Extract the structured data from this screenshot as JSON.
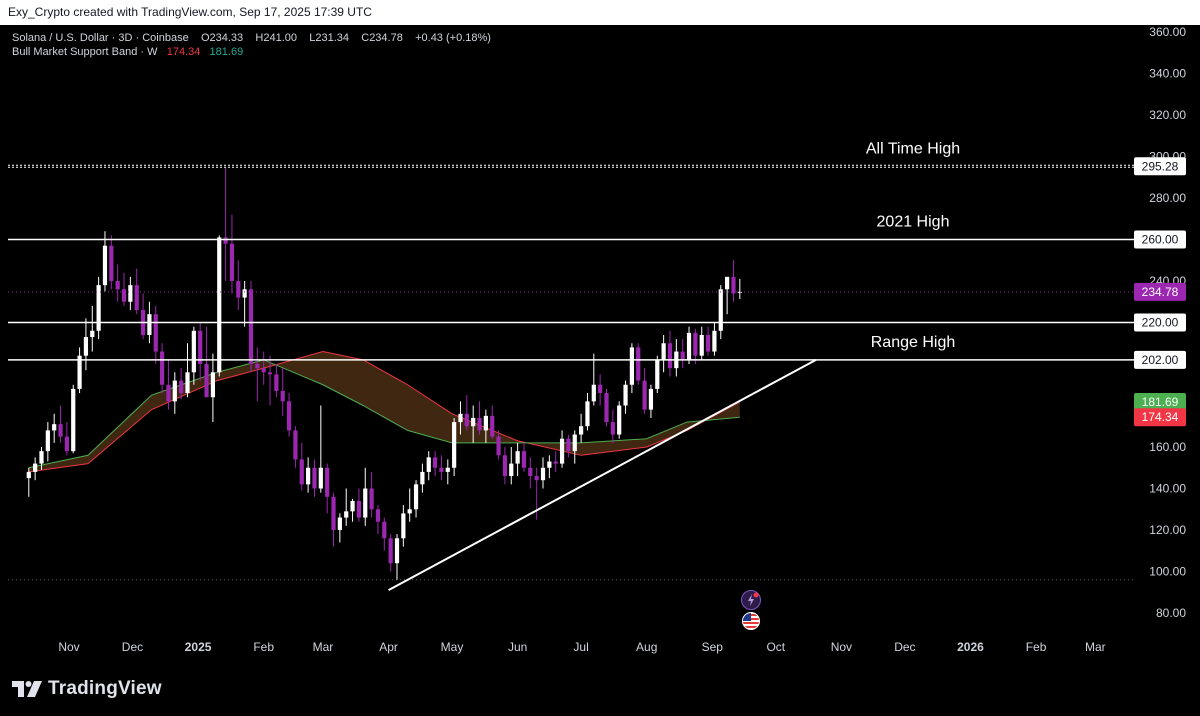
{
  "header": {
    "attribution": "Exy_Crypto created with TradingView.com, Sep 17, 2025 17:39 UTC"
  },
  "legend": {
    "symbol_line": "Solana / U.S. Dollar · 3D · Coinbase",
    "ohlc": {
      "o": "O234.33",
      "h": "H241.00",
      "l": "L231.34",
      "c": "C234.78",
      "chg": "+0.43 (+0.18%)"
    },
    "indicator_name": "Bull Market Support Band · W",
    "indicator_v1": "174.34",
    "indicator_v2": "181.69"
  },
  "branding": {
    "logo_text": "TradingView"
  },
  "colors": {
    "background": "#000000",
    "candle_up": "#ffffff",
    "candle_down": "#9c27b0",
    "band_red": "#f23645",
    "band_green": "#4caf50",
    "band_fill": "#4a2e14",
    "level_line": "#ffffff",
    "last_price_tag": "#9c27b0"
  },
  "chart_data": {
    "type": "candlestick",
    "title": "Solana / U.S. Dollar · 3D · Coinbase",
    "ylim": [
      75,
      362
    ],
    "y_ticks": [
      80,
      100,
      120,
      140,
      160,
      180,
      200,
      220,
      240,
      260,
      280,
      300,
      320,
      340,
      360
    ],
    "y_tick_labels": [
      "80.00",
      "100.00",
      "120.00",
      "140.00",
      "160.00",
      "180.00",
      "200.00",
      "220.00",
      "240.00",
      "260.00",
      "280.00",
      "300.00",
      "320.00",
      "340.00",
      "360.00"
    ],
    "x_ticks": [
      {
        "label": "Nov",
        "date": "2024-11-01",
        "bold": false
      },
      {
        "label": "Dec",
        "date": "2024-12-01",
        "bold": false
      },
      {
        "label": "2025",
        "date": "2025-01-01",
        "bold": true
      },
      {
        "label": "Feb",
        "date": "2025-02-01",
        "bold": false
      },
      {
        "label": "Mar",
        "date": "2025-03-01",
        "bold": false
      },
      {
        "label": "Apr",
        "date": "2025-04-01",
        "bold": false
      },
      {
        "label": "May",
        "date": "2025-05-01",
        "bold": false
      },
      {
        "label": "Jun",
        "date": "2025-06-01",
        "bold": false
      },
      {
        "label": "Jul",
        "date": "2025-07-01",
        "bold": false
      },
      {
        "label": "Aug",
        "date": "2025-08-01",
        "bold": false
      },
      {
        "label": "Sep",
        "date": "2025-09-01",
        "bold": false
      },
      {
        "label": "Oct",
        "date": "2025-10-01",
        "bold": false
      },
      {
        "label": "Nov",
        "date": "2025-11-01",
        "bold": false
      },
      {
        "label": "Dec",
        "date": "2025-12-01",
        "bold": false
      },
      {
        "label": "2026",
        "date": "2026-01-01",
        "bold": true
      },
      {
        "label": "Feb",
        "date": "2026-02-01",
        "bold": false
      },
      {
        "label": "Mar",
        "date": "2026-03-01",
        "bold": false
      }
    ],
    "levels": [
      {
        "name": "All Time High",
        "value": 295.28,
        "label": "295.28",
        "style": "dotted",
        "text": "All Time High"
      },
      {
        "name": "2021 High",
        "value": 260,
        "label": "260.00",
        "style": "solid",
        "text": "2021 High"
      },
      {
        "name": "Range High top",
        "value": 220,
        "label": "220.00",
        "style": "solid",
        "text": ""
      },
      {
        "name": "Range High",
        "value": 202,
        "label": "202.00",
        "style": "solid",
        "text": "Range High"
      }
    ],
    "last_price": {
      "value": 234.78,
      "label": "234.78"
    },
    "band_labels": [
      {
        "value": 181.69,
        "label": "181.69",
        "color": "#4caf50"
      },
      {
        "value": 174.34,
        "label": "174.34",
        "color": "#f23645"
      }
    ],
    "trendline": {
      "start": {
        "date": "2025-04-01",
        "value": 91
      },
      "end": {
        "date": "2025-10-20",
        "value": 202
      }
    },
    "bottom_dotted_level": 96,
    "candles": [
      {
        "date": "2024-10-13",
        "o": 145,
        "h": 150,
        "l": 136,
        "c": 148
      },
      {
        "date": "2024-10-16",
        "o": 148,
        "h": 155,
        "l": 144,
        "c": 152
      },
      {
        "date": "2024-10-19",
        "o": 152,
        "h": 160,
        "l": 149,
        "c": 158
      },
      {
        "date": "2024-10-22",
        "o": 158,
        "h": 172,
        "l": 153,
        "c": 168
      },
      {
        "date": "2024-10-25",
        "o": 168,
        "h": 176,
        "l": 162,
        "c": 171
      },
      {
        "date": "2024-10-28",
        "o": 171,
        "h": 180,
        "l": 162,
        "c": 165
      },
      {
        "date": "2024-10-31",
        "o": 165,
        "h": 172,
        "l": 156,
        "c": 158
      },
      {
        "date": "2024-11-03",
        "o": 158,
        "h": 190,
        "l": 157,
        "c": 188
      },
      {
        "date": "2024-11-06",
        "o": 188,
        "h": 208,
        "l": 186,
        "c": 204
      },
      {
        "date": "2024-11-09",
        "o": 204,
        "h": 222,
        "l": 197,
        "c": 213
      },
      {
        "date": "2024-11-12",
        "o": 213,
        "h": 228,
        "l": 206,
        "c": 216
      },
      {
        "date": "2024-11-15",
        "o": 216,
        "h": 242,
        "l": 212,
        "c": 238
      },
      {
        "date": "2024-11-18",
        "o": 238,
        "h": 264,
        "l": 235,
        "c": 257
      },
      {
        "date": "2024-11-21",
        "o": 257,
        "h": 262,
        "l": 236,
        "c": 240
      },
      {
        "date": "2024-11-24",
        "o": 240,
        "h": 248,
        "l": 230,
        "c": 236
      },
      {
        "date": "2024-11-27",
        "o": 236,
        "h": 244,
        "l": 228,
        "c": 230
      },
      {
        "date": "2024-11-30",
        "o": 230,
        "h": 242,
        "l": 226,
        "c": 238
      },
      {
        "date": "2024-12-03",
        "o": 238,
        "h": 246,
        "l": 224,
        "c": 226
      },
      {
        "date": "2024-12-06",
        "o": 226,
        "h": 234,
        "l": 212,
        "c": 214
      },
      {
        "date": "2024-12-09",
        "o": 214,
        "h": 230,
        "l": 210,
        "c": 224
      },
      {
        "date": "2024-12-12",
        "o": 224,
        "h": 228,
        "l": 200,
        "c": 206
      },
      {
        "date": "2024-12-15",
        "o": 206,
        "h": 210,
        "l": 186,
        "c": 190
      },
      {
        "date": "2024-12-18",
        "o": 190,
        "h": 202,
        "l": 178,
        "c": 182
      },
      {
        "date": "2024-12-21",
        "o": 182,
        "h": 196,
        "l": 176,
        "c": 192
      },
      {
        "date": "2024-12-24",
        "o": 192,
        "h": 198,
        "l": 183,
        "c": 186
      },
      {
        "date": "2024-12-27",
        "o": 186,
        "h": 210,
        "l": 184,
        "c": 196
      },
      {
        "date": "2024-12-30",
        "o": 196,
        "h": 218,
        "l": 190,
        "c": 216
      },
      {
        "date": "2025-01-02",
        "o": 216,
        "h": 220,
        "l": 192,
        "c": 200
      },
      {
        "date": "2025-01-05",
        "o": 200,
        "h": 218,
        "l": 184,
        "c": 184
      },
      {
        "date": "2025-01-08",
        "o": 184,
        "h": 205,
        "l": 172,
        "c": 196
      },
      {
        "date": "2025-01-11",
        "o": 196,
        "h": 262,
        "l": 194,
        "c": 261
      },
      {
        "date": "2025-01-14",
        "o": 261,
        "h": 295,
        "l": 240,
        "c": 258
      },
      {
        "date": "2025-01-17",
        "o": 258,
        "h": 272,
        "l": 234,
        "c": 240
      },
      {
        "date": "2025-01-20",
        "o": 240,
        "h": 250,
        "l": 226,
        "c": 232
      },
      {
        "date": "2025-01-23",
        "o": 232,
        "h": 240,
        "l": 218,
        "c": 236
      },
      {
        "date": "2025-01-26",
        "o": 236,
        "h": 240,
        "l": 196,
        "c": 200
      },
      {
        "date": "2025-01-29",
        "o": 200,
        "h": 208,
        "l": 182,
        "c": 198
      },
      {
        "date": "2025-02-01",
        "o": 198,
        "h": 206,
        "l": 190,
        "c": 196
      },
      {
        "date": "2025-02-04",
        "o": 196,
        "h": 204,
        "l": 180,
        "c": 195
      },
      {
        "date": "2025-02-07",
        "o": 195,
        "h": 200,
        "l": 184,
        "c": 187
      },
      {
        "date": "2025-02-10",
        "o": 187,
        "h": 198,
        "l": 175,
        "c": 182
      },
      {
        "date": "2025-02-13",
        "o": 182,
        "h": 186,
        "l": 165,
        "c": 168
      },
      {
        "date": "2025-02-16",
        "o": 168,
        "h": 170,
        "l": 150,
        "c": 154
      },
      {
        "date": "2025-02-19",
        "o": 154,
        "h": 162,
        "l": 139,
        "c": 142
      },
      {
        "date": "2025-02-22",
        "o": 142,
        "h": 155,
        "l": 138,
        "c": 150
      },
      {
        "date": "2025-02-25",
        "o": 150,
        "h": 154,
        "l": 136,
        "c": 140
      },
      {
        "date": "2025-02-28",
        "o": 140,
        "h": 180,
        "l": 138,
        "c": 150
      },
      {
        "date": "2025-03-03",
        "o": 150,
        "h": 152,
        "l": 128,
        "c": 136
      },
      {
        "date": "2025-03-06",
        "o": 136,
        "h": 138,
        "l": 112,
        "c": 120
      },
      {
        "date": "2025-03-09",
        "o": 120,
        "h": 128,
        "l": 114,
        "c": 126
      },
      {
        "date": "2025-03-12",
        "o": 126,
        "h": 140,
        "l": 122,
        "c": 129
      },
      {
        "date": "2025-03-15",
        "o": 129,
        "h": 135,
        "l": 124,
        "c": 134
      },
      {
        "date": "2025-03-18",
        "o": 134,
        "h": 140,
        "l": 124,
        "c": 126
      },
      {
        "date": "2025-03-21",
        "o": 126,
        "h": 150,
        "l": 122,
        "c": 140
      },
      {
        "date": "2025-03-24",
        "o": 140,
        "h": 148,
        "l": 126,
        "c": 130
      },
      {
        "date": "2025-03-27",
        "o": 130,
        "h": 132,
        "l": 118,
        "c": 124
      },
      {
        "date": "2025-03-30",
        "o": 124,
        "h": 126,
        "l": 110,
        "c": 116
      },
      {
        "date": "2025-04-02",
        "o": 116,
        "h": 118,
        "l": 100,
        "c": 104
      },
      {
        "date": "2025-04-05",
        "o": 104,
        "h": 118,
        "l": 96,
        "c": 116
      },
      {
        "date": "2025-04-08",
        "o": 116,
        "h": 132,
        "l": 112,
        "c": 128
      },
      {
        "date": "2025-04-11",
        "o": 128,
        "h": 140,
        "l": 124,
        "c": 130
      },
      {
        "date": "2025-04-14",
        "o": 130,
        "h": 144,
        "l": 126,
        "c": 142
      },
      {
        "date": "2025-04-17",
        "o": 142,
        "h": 152,
        "l": 138,
        "c": 148
      },
      {
        "date": "2025-04-20",
        "o": 148,
        "h": 158,
        "l": 144,
        "c": 155
      },
      {
        "date": "2025-04-23",
        "o": 155,
        "h": 158,
        "l": 146,
        "c": 150
      },
      {
        "date": "2025-04-26",
        "o": 150,
        "h": 156,
        "l": 144,
        "c": 148
      },
      {
        "date": "2025-04-29",
        "o": 148,
        "h": 154,
        "l": 142,
        "c": 150
      },
      {
        "date": "2025-05-02",
        "o": 150,
        "h": 174,
        "l": 146,
        "c": 172
      },
      {
        "date": "2025-05-05",
        "o": 172,
        "h": 182,
        "l": 166,
        "c": 176
      },
      {
        "date": "2025-05-08",
        "o": 176,
        "h": 185,
        "l": 168,
        "c": 170
      },
      {
        "date": "2025-05-11",
        "o": 170,
        "h": 180,
        "l": 162,
        "c": 174
      },
      {
        "date": "2025-05-14",
        "o": 174,
        "h": 182,
        "l": 166,
        "c": 168
      },
      {
        "date": "2025-05-17",
        "o": 168,
        "h": 178,
        "l": 162,
        "c": 175
      },
      {
        "date": "2025-05-20",
        "o": 175,
        "h": 180,
        "l": 164,
        "c": 165
      },
      {
        "date": "2025-05-23",
        "o": 165,
        "h": 168,
        "l": 154,
        "c": 156
      },
      {
        "date": "2025-05-26",
        "o": 156,
        "h": 160,
        "l": 142,
        "c": 146
      },
      {
        "date": "2025-05-29",
        "o": 146,
        "h": 160,
        "l": 142,
        "c": 152
      },
      {
        "date": "2025-06-01",
        "o": 152,
        "h": 162,
        "l": 146,
        "c": 158
      },
      {
        "date": "2025-06-04",
        "o": 158,
        "h": 162,
        "l": 148,
        "c": 150
      },
      {
        "date": "2025-06-07",
        "o": 150,
        "h": 155,
        "l": 140,
        "c": 146
      },
      {
        "date": "2025-06-10",
        "o": 146,
        "h": 150,
        "l": 125,
        "c": 144
      },
      {
        "date": "2025-06-13",
        "o": 144,
        "h": 155,
        "l": 140,
        "c": 150
      },
      {
        "date": "2025-06-16",
        "o": 150,
        "h": 156,
        "l": 145,
        "c": 153
      },
      {
        "date": "2025-06-19",
        "o": 153,
        "h": 158,
        "l": 148,
        "c": 152
      },
      {
        "date": "2025-06-22",
        "o": 152,
        "h": 168,
        "l": 150,
        "c": 164
      },
      {
        "date": "2025-06-25",
        "o": 164,
        "h": 166,
        "l": 155,
        "c": 158
      },
      {
        "date": "2025-06-28",
        "o": 158,
        "h": 168,
        "l": 152,
        "c": 166
      },
      {
        "date": "2025-07-01",
        "o": 166,
        "h": 176,
        "l": 162,
        "c": 170
      },
      {
        "date": "2025-07-04",
        "o": 170,
        "h": 186,
        "l": 168,
        "c": 182
      },
      {
        "date": "2025-07-07",
        "o": 182,
        "h": 205,
        "l": 180,
        "c": 190
      },
      {
        "date": "2025-07-10",
        "o": 190,
        "h": 195,
        "l": 180,
        "c": 186
      },
      {
        "date": "2025-07-13",
        "o": 186,
        "h": 188,
        "l": 170,
        "c": 172
      },
      {
        "date": "2025-07-16",
        "o": 172,
        "h": 178,
        "l": 162,
        "c": 166
      },
      {
        "date": "2025-07-19",
        "o": 166,
        "h": 182,
        "l": 164,
        "c": 180
      },
      {
        "date": "2025-07-22",
        "o": 180,
        "h": 192,
        "l": 176,
        "c": 190
      },
      {
        "date": "2025-07-25",
        "o": 190,
        "h": 210,
        "l": 186,
        "c": 208
      },
      {
        "date": "2025-07-28",
        "o": 208,
        "h": 210,
        "l": 190,
        "c": 192
      },
      {
        "date": "2025-07-31",
        "o": 192,
        "h": 198,
        "l": 176,
        "c": 178
      },
      {
        "date": "2025-08-03",
        "o": 178,
        "h": 190,
        "l": 174,
        "c": 188
      },
      {
        "date": "2025-08-06",
        "o": 188,
        "h": 204,
        "l": 186,
        "c": 202
      },
      {
        "date": "2025-08-09",
        "o": 202,
        "h": 214,
        "l": 196,
        "c": 210
      },
      {
        "date": "2025-08-12",
        "o": 210,
        "h": 216,
        "l": 194,
        "c": 198
      },
      {
        "date": "2025-08-15",
        "o": 198,
        "h": 212,
        "l": 194,
        "c": 206
      },
      {
        "date": "2025-08-18",
        "o": 206,
        "h": 212,
        "l": 198,
        "c": 202
      },
      {
        "date": "2025-08-21",
        "o": 202,
        "h": 218,
        "l": 200,
        "c": 215
      },
      {
        "date": "2025-08-24",
        "o": 215,
        "h": 217,
        "l": 200,
        "c": 204
      },
      {
        "date": "2025-08-27",
        "o": 204,
        "h": 218,
        "l": 202,
        "c": 214
      },
      {
        "date": "2025-08-30",
        "o": 214,
        "h": 218,
        "l": 204,
        "c": 206
      },
      {
        "date": "2025-09-02",
        "o": 206,
        "h": 220,
        "l": 204,
        "c": 216
      },
      {
        "date": "2025-09-05",
        "o": 216,
        "h": 238,
        "l": 212,
        "c": 236
      },
      {
        "date": "2025-09-08",
        "o": 236,
        "h": 242,
        "l": 224,
        "c": 242
      },
      {
        "date": "2025-09-11",
        "o": 242,
        "h": 250,
        "l": 230,
        "c": 234
      },
      {
        "date": "2025-09-14",
        "o": 234.33,
        "h": 241,
        "l": 231.34,
        "c": 234.78
      }
    ],
    "band_upper_red": [
      {
        "date": "2024-10-13",
        "v": 148
      },
      {
        "date": "2024-11-10",
        "v": 152
      },
      {
        "date": "2024-12-10",
        "v": 178
      },
      {
        "date": "2025-01-10",
        "v": 192
      },
      {
        "date": "2025-02-01",
        "v": 198
      },
      {
        "date": "2025-03-01",
        "v": 206
      },
      {
        "date": "2025-03-20",
        "v": 202
      },
      {
        "date": "2025-04-10",
        "v": 190
      },
      {
        "date": "2025-05-01",
        "v": 176
      },
      {
        "date": "2025-06-01",
        "v": 163
      },
      {
        "date": "2025-07-01",
        "v": 156
      },
      {
        "date": "2025-08-01",
        "v": 160
      },
      {
        "date": "2025-08-20",
        "v": 168
      },
      {
        "date": "2025-09-14",
        "v": 181.69
      }
    ],
    "band_lower_green": [
      {
        "date": "2024-10-13",
        "v": 150
      },
      {
        "date": "2024-11-10",
        "v": 156
      },
      {
        "date": "2024-12-10",
        "v": 185
      },
      {
        "date": "2025-01-10",
        "v": 196
      },
      {
        "date": "2025-02-01",
        "v": 202
      },
      {
        "date": "2025-03-01",
        "v": 190
      },
      {
        "date": "2025-03-20",
        "v": 180
      },
      {
        "date": "2025-04-10",
        "v": 168
      },
      {
        "date": "2025-05-01",
        "v": 162
      },
      {
        "date": "2025-06-01",
        "v": 162
      },
      {
        "date": "2025-07-01",
        "v": 162
      },
      {
        "date": "2025-08-01",
        "v": 164
      },
      {
        "date": "2025-08-20",
        "v": 172
      },
      {
        "date": "2025-09-14",
        "v": 174.34
      }
    ]
  }
}
